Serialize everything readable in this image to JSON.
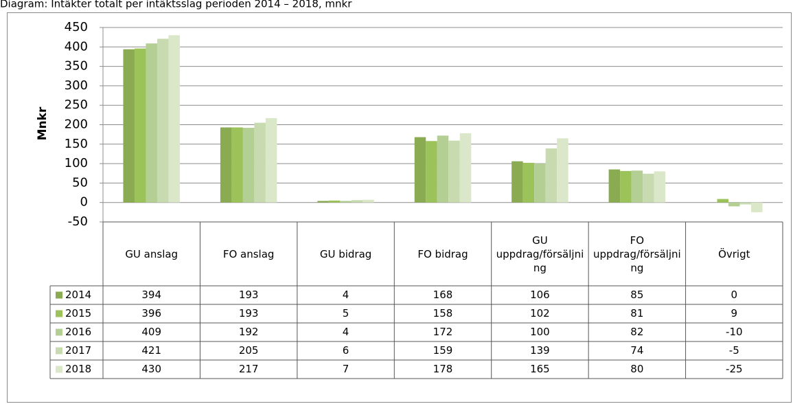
{
  "chart_data": {
    "type": "bar",
    "title": "Diagram: Intäkter totalt per intäktsslag perioden 2014 – 2018, mnkr",
    "y_label": "Mnkr",
    "categories": [
      "GU anslag",
      "FO anslag",
      "GU bidrag",
      "FO bidrag",
      "GU uppdrag/försäljning",
      "FO uppdrag/försäljning",
      "Övrigt"
    ],
    "series": [
      {
        "name": "2014",
        "color": "#8aab52",
        "values": [
          394,
          193,
          4,
          168,
          106,
          85,
          0
        ]
      },
      {
        "name": "2015",
        "color": "#9bc35a",
        "values": [
          396,
          193,
          5,
          158,
          102,
          81,
          9
        ]
      },
      {
        "name": "2016",
        "color": "#b4cf93",
        "values": [
          409,
          192,
          4,
          172,
          100,
          82,
          -10
        ]
      },
      {
        "name": "2017",
        "color": "#c8dbb0",
        "values": [
          421,
          205,
          6,
          159,
          139,
          74,
          -5
        ]
      },
      {
        "name": "2018",
        "color": "#dbe7c9",
        "values": [
          430,
          217,
          7,
          178,
          165,
          80,
          -25
        ]
      }
    ],
    "ylim": [
      -50,
      450
    ],
    "yticks": [
      -50,
      0,
      50,
      100,
      150,
      200,
      250,
      300,
      350,
      400,
      450
    ],
    "grid": true
  }
}
